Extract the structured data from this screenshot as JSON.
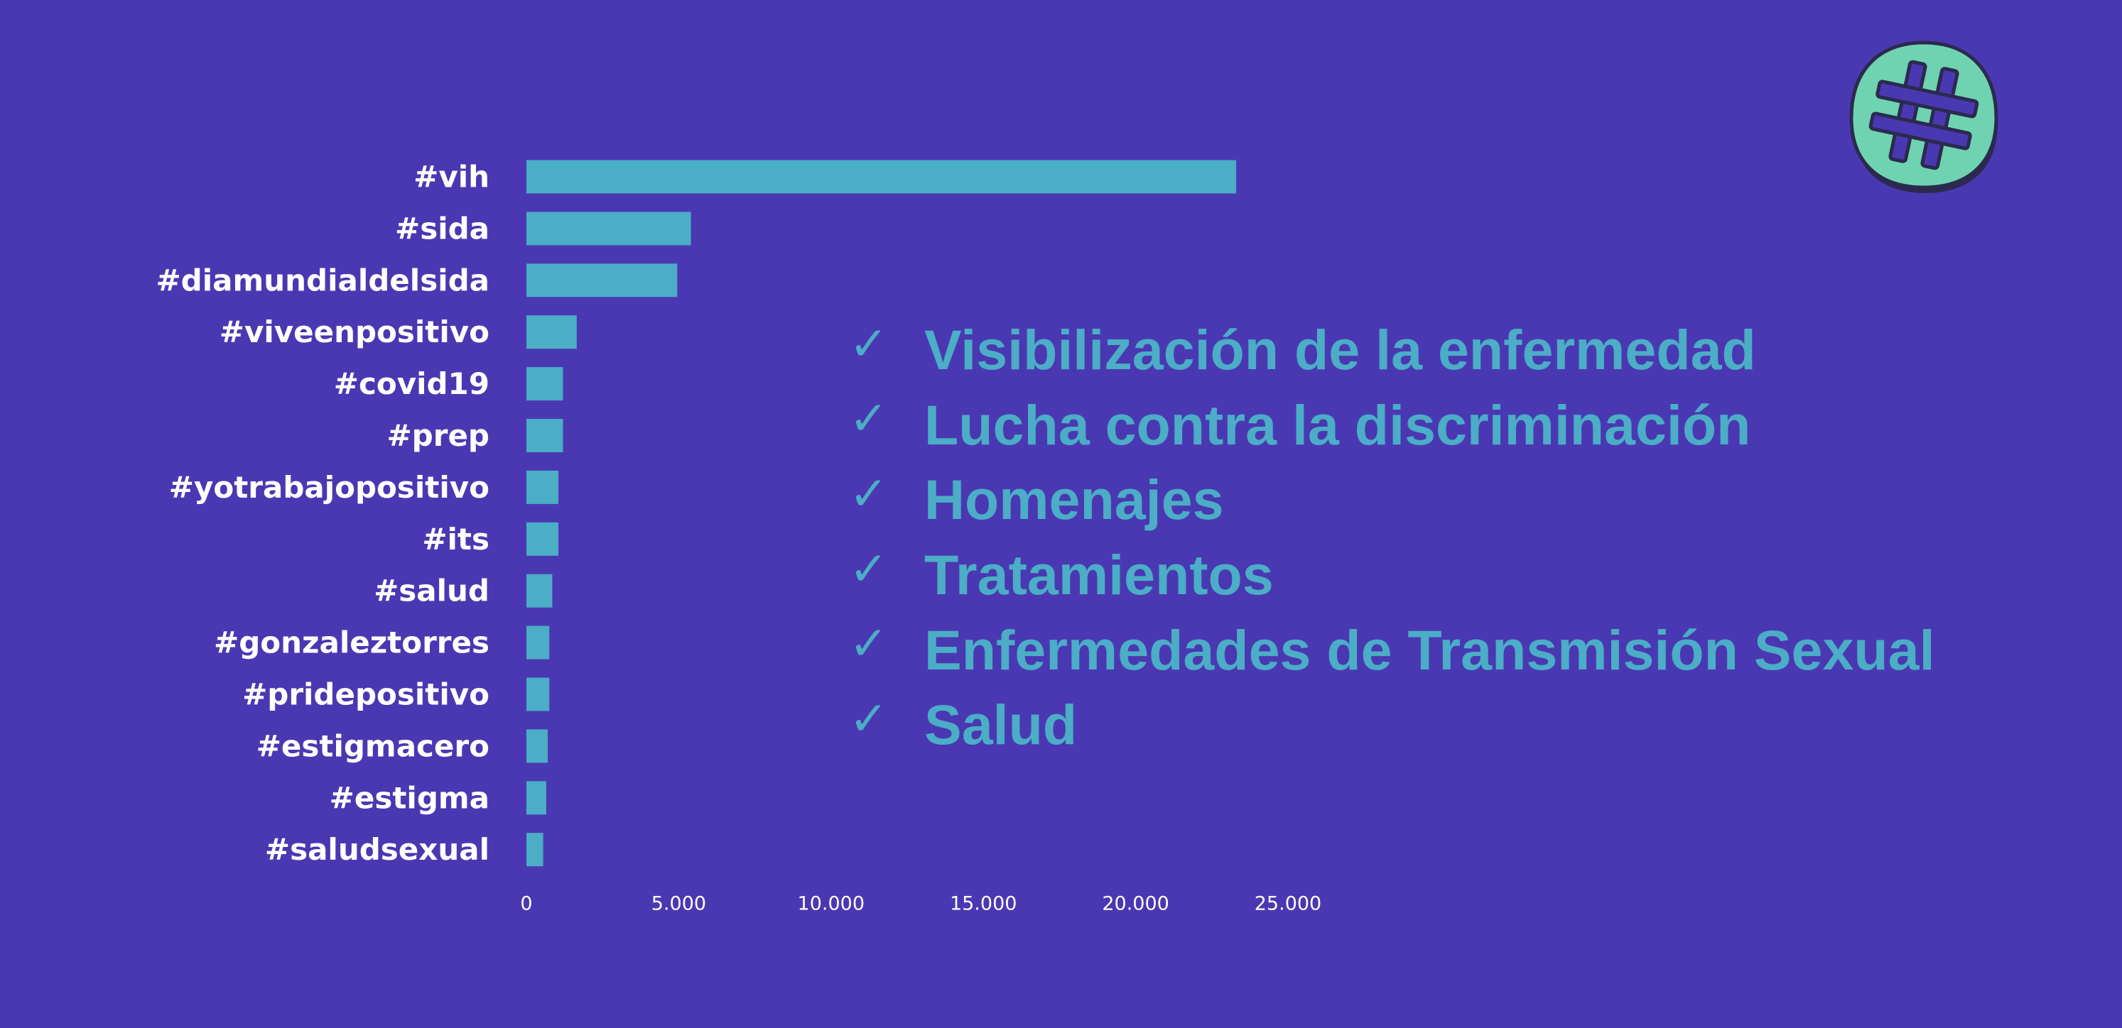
{
  "colors": {
    "background": "#4a38b2",
    "bar": "#4badc6",
    "text_accent": "#4badc6",
    "label": "#ffffff",
    "logo_fill": "#6fd3b2",
    "logo_outline": "#2b2a4e"
  },
  "logo": {
    "icon": "hashtag-icon"
  },
  "checklist": {
    "icon": "check-icon",
    "mark": "✓",
    "items": [
      "Visibilización de la enfermedad",
      "Lucha contra la discriminación",
      "Homenajes",
      "Tratamientos",
      "Enfermedades de Transmisión Sexual",
      "Salud"
    ]
  },
  "chart_data": {
    "type": "bar",
    "orientation": "horizontal",
    "categories": [
      "#vih",
      "#sida",
      "#diamundialdelsida",
      "#viveenpositivo",
      "#covid19",
      "#prep",
      "#yotrabajopositivo",
      "#its",
      "#salud",
      "#gonzaleztorres",
      "#pridepositivo",
      "#estigmacero",
      "#estigma",
      "#saludsexual"
    ],
    "values": [
      23300,
      5400,
      4950,
      1650,
      1200,
      1200,
      1050,
      1050,
      850,
      750,
      750,
      700,
      650,
      550
    ],
    "xlim": [
      0,
      25000
    ],
    "xticks": [
      0,
      5000,
      10000,
      15000,
      20000,
      25000
    ],
    "xtick_labels": [
      "0",
      "5.000",
      "10.000",
      "15.000",
      "20.000",
      "25.000"
    ],
    "title": "",
    "xlabel": "",
    "ylabel": "",
    "grid": false,
    "legend": "none"
  }
}
